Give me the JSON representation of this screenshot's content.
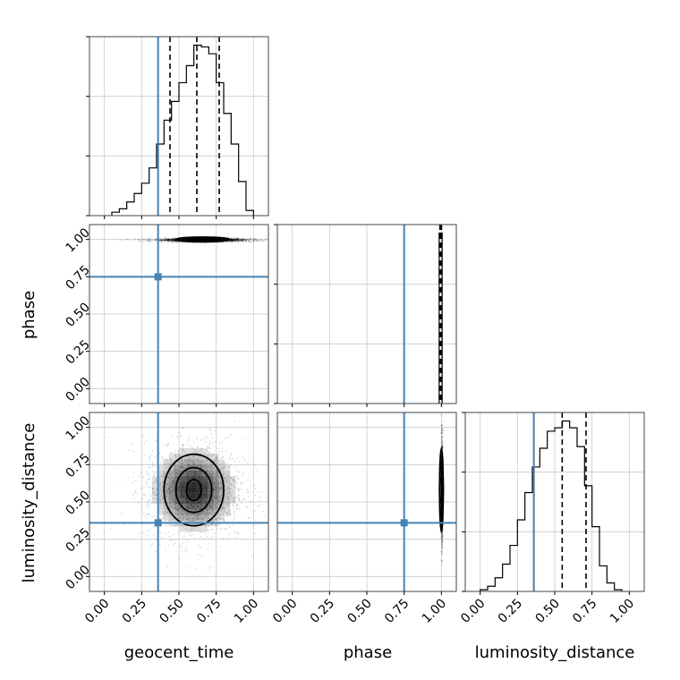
{
  "chart_data": {
    "type": "corner",
    "parameters": [
      "geocent_time",
      "phase",
      "luminosity_distance"
    ],
    "ticks": [
      "0.00",
      "0.25",
      "0.50",
      "0.75",
      "1.00"
    ],
    "tick_values": [
      0,
      0.25,
      0.5,
      0.75,
      1.0
    ],
    "range": [
      -0.1,
      1.1
    ],
    "truths": {
      "geocent_time": 0.36,
      "phase": 0.75,
      "luminosity_distance": 0.36
    },
    "colors": {
      "truth": "#4682b4",
      "contour": "#000000",
      "grid": "#c9c9c9"
    },
    "marginals": [
      {
        "parameter": "geocent_time",
        "bin_edges": [
          0.05,
          0.1,
          0.15,
          0.2,
          0.25,
          0.3,
          0.35,
          0.4,
          0.45,
          0.5,
          0.55,
          0.6,
          0.65,
          0.7,
          0.75,
          0.8,
          0.85,
          0.9,
          0.95,
          1.0
        ],
        "heights": [
          2,
          4,
          8,
          13,
          19,
          28,
          42,
          56,
          67,
          78,
          88,
          100,
          99,
          95,
          78,
          60,
          42,
          20,
          3
        ],
        "quantiles": [
          0.44,
          0.62,
          0.77
        ]
      },
      {
        "parameter": "phase",
        "bin_edges": [
          0.985,
          0.995,
          1.005
        ],
        "heights": [
          100,
          100
        ],
        "quantiles": [
          0.99,
          1.0,
          1.0
        ]
      },
      {
        "parameter": "luminosity_distance",
        "bin_edges": [
          0.0,
          0.05,
          0.1,
          0.15,
          0.2,
          0.25,
          0.3,
          0.35,
          0.4,
          0.45,
          0.5,
          0.55,
          0.6,
          0.65,
          0.7,
          0.75,
          0.8,
          0.85,
          0.9,
          0.95
        ],
        "heights": [
          1,
          3,
          8,
          16,
          27,
          42,
          58,
          73,
          84,
          94,
          96,
          100,
          96,
          85,
          62,
          38,
          15,
          5,
          1
        ],
        "quantiles": [
          0.36,
          0.55,
          0.71
        ]
      }
    ],
    "joint": [
      {
        "x_param": "geocent_time",
        "y_param": "phase",
        "center": [
          0.66,
          1.0
        ],
        "spread": [
          0.17,
          0.006
        ],
        "contour_radii": [
          [
            0.06,
            0.008
          ],
          [
            0.12,
            0.012
          ],
          [
            0.18,
            0.016
          ]
        ],
        "grey_band": [
          0.06,
          1.0
        ]
      },
      {
        "x_param": "phase",
        "y_param": "luminosity_distance",
        "center": [
          1.0,
          0.58
        ],
        "spread": [
          0.003,
          0.17
        ],
        "contour_radii": [
          [
            0.003,
            0.08
          ],
          [
            0.006,
            0.18
          ],
          [
            0.009,
            0.28
          ]
        ],
        "grey_band": [
          0.3,
          0.95
        ]
      },
      {
        "x_param": "geocent_time",
        "y_param": "luminosity_distance",
        "center": [
          0.6,
          0.58
        ],
        "spread": [
          0.17,
          0.17
        ],
        "contour_radii": [
          [
            0.05,
            0.07
          ],
          [
            0.12,
            0.15
          ],
          [
            0.2,
            0.24
          ]
        ],
        "grey_band": [
          0.2,
          0.95
        ]
      }
    ]
  },
  "labels": {
    "x": [
      "geocent_time",
      "phase",
      "luminosity_distance"
    ],
    "y": [
      "phase",
      "luminosity_distance"
    ]
  }
}
